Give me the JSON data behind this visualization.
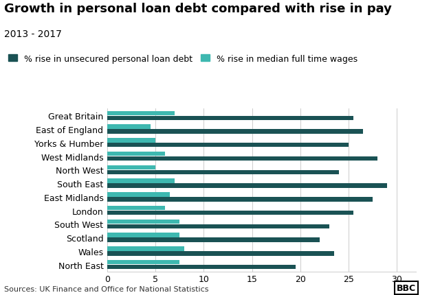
{
  "title": "Growth in personal loan debt compared with rise in pay",
  "subtitle": "2013 - 2017",
  "source": "Sources: UK Finance and Office for National Statistics",
  "legend": [
    "% rise in unsecured personal loan debt",
    "% rise in median full time wages"
  ],
  "categories": [
    "Great Britain",
    "East of England",
    "Yorks & Humber",
    "West Midlands",
    "North West",
    "South East",
    "East Midlands",
    "London",
    "South West",
    "Scotland",
    "Wales",
    "North East"
  ],
  "debt_values": [
    25.5,
    26.5,
    25.0,
    28.0,
    24.0,
    29.0,
    27.5,
    25.5,
    23.0,
    22.0,
    23.5,
    19.5
  ],
  "wage_values": [
    7.0,
    4.5,
    5.0,
    6.0,
    5.0,
    7.0,
    6.5,
    6.0,
    7.5,
    7.5,
    8.0,
    7.5
  ],
  "debt_color": "#1a5254",
  "wage_color": "#3eb8b0",
  "background_color": "#ffffff",
  "xlim": [
    0,
    32
  ],
  "xticks": [
    0,
    5,
    10,
    15,
    20,
    25,
    30
  ],
  "bar_height": 0.32,
  "title_fontsize": 13,
  "subtitle_fontsize": 10,
  "label_fontsize": 9,
  "tick_fontsize": 9,
  "legend_fontsize": 9,
  "source_fontsize": 8
}
